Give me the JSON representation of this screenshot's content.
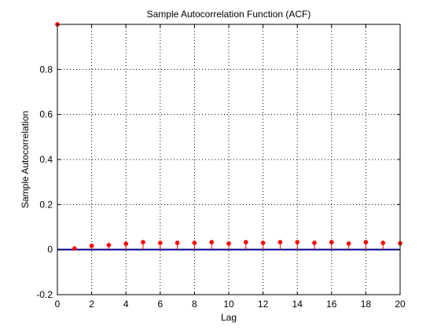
{
  "chart_data": {
    "type": "stem",
    "title": "Sample Autocorrelation Function (ACF)",
    "xlabel": "Lag",
    "ylabel": "Sample Autocorrelation",
    "xlim": [
      0,
      20
    ],
    "ylim": [
      -0.2,
      1.0
    ],
    "xticks": [
      0,
      2,
      4,
      6,
      8,
      10,
      12,
      14,
      16,
      18,
      20
    ],
    "xtick_labels": [
      "0",
      "2",
      "4",
      "6",
      "8",
      "10",
      "12",
      "14",
      "16",
      "18",
      "20"
    ],
    "yticks": [
      -0.2,
      0,
      0.2,
      0.4,
      0.6,
      0.8
    ],
    "ytick_labels": [
      "-0.2",
      "0",
      "0.2",
      "0.4",
      "0.6",
      "0.8"
    ],
    "grid": true,
    "series": [
      {
        "x": [
          0,
          1,
          2,
          3,
          4,
          5,
          6,
          7,
          8,
          9,
          10,
          11,
          12,
          13,
          14,
          15,
          16,
          17,
          18,
          19,
          20
        ],
        "values": [
          1.0,
          0.005,
          0.017,
          0.02,
          0.026,
          0.033,
          0.03,
          0.03,
          0.03,
          0.033,
          0.027,
          0.033,
          0.03,
          0.033,
          0.033,
          0.03,
          0.033,
          0.027,
          0.033,
          0.03,
          0.028
        ]
      }
    ],
    "zero_line": 0,
    "colors": {
      "marker": "#ff0000",
      "stem": "#ff0000",
      "zero_line": "#00008b",
      "grid": "#000000"
    }
  }
}
